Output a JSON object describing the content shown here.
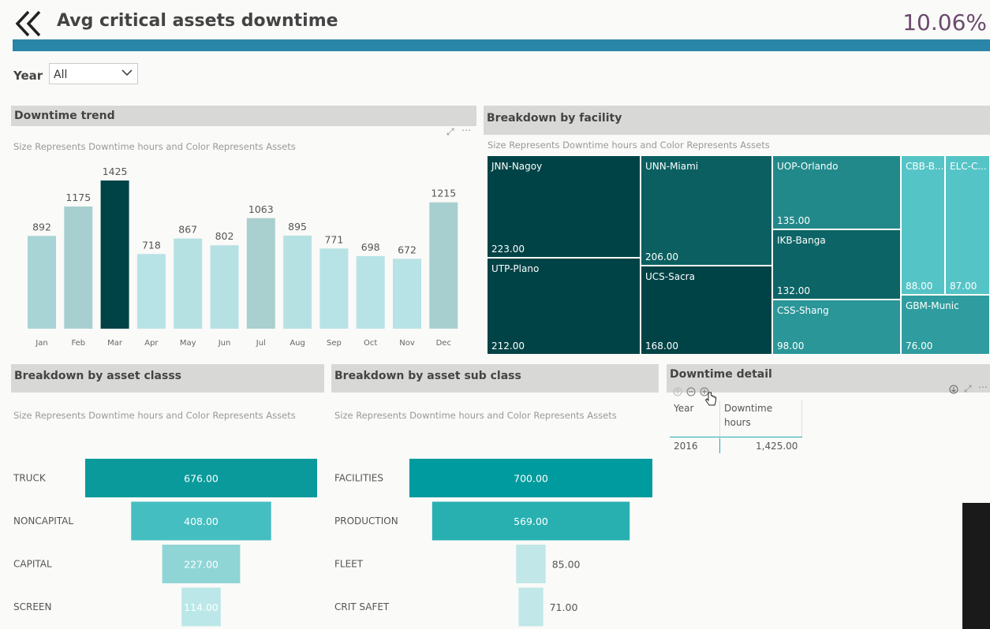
{
  "header": {
    "title": "Avg critical assets downtime",
    "kpi_value": "10.06%"
  },
  "filter": {
    "label": "Year",
    "value": "All"
  },
  "trend": {
    "header": "Downtime trend",
    "subtitle": "Size Represents Downtime hours and Color Represents  Assets"
  },
  "facility": {
    "header": "Breakdown by facility",
    "subtitle": "Size Represents Downtime hours and Color Represents  Assets"
  },
  "asset_class": {
    "header": "Breakdown by asset classs",
    "subtitle": "Size Represents Downtime hours and Color Represents  Assets"
  },
  "asset_sub_class": {
    "header": "Breakdown by asset sub class",
    "subtitle": "Size Represents Downtime hours and Color Represents  Assets"
  },
  "detail": {
    "header": "Downtime detail",
    "columns": [
      "Year",
      "Downtime",
      "hours"
    ],
    "rows": [
      {
        "year": "2016",
        "hours": "1,425.00"
      }
    ]
  },
  "colors": {
    "accent": "#2a86a8",
    "kpi": "#6b4a6e",
    "dark_teal": "#004346",
    "mid_teal": "#0a9a9c",
    "light_teal": "#b6e0e0"
  },
  "chart_data": [
    {
      "type": "bar",
      "categories": [
        "Jan",
        "Feb",
        "Mar",
        "Apr",
        "May",
        "Jun",
        "Jul",
        "Aug",
        "Sep",
        "Oct",
        "Nov",
        "Dec"
      ],
      "values": [
        892,
        1175,
        1425,
        718,
        867,
        802,
        1063,
        895,
        771,
        698,
        672,
        1215
      ],
      "data_labels": [
        "892",
        "1175",
        "1425",
        "718",
        "867",
        "802",
        "1063",
        "895",
        "771",
        "698",
        "672",
        "1215"
      ],
      "colors": [
        "#a8d4d6",
        "#a8cfcf",
        "#004346",
        "#b8e3e6",
        "#b6e1e3",
        "#b6e1e3",
        "#a9cfcf",
        "#b6e1e3",
        "#b8e3e6",
        "#b8e3e6",
        "#b8e3e6",
        "#a8cfcf"
      ]
    },
    {
      "type": "heatmap",
      "subtype": "treemap",
      "cells": [
        {
          "name": "JNN-Nagoy",
          "value": 223.0,
          "label": "223.00",
          "color": "#004346"
        },
        {
          "name": "UTP-Plano",
          "value": 212.0,
          "label": "212.00",
          "color": "#004346"
        },
        {
          "name": "UNN-Miami",
          "value": 206.0,
          "label": "206.00",
          "color": "#0b5f61"
        },
        {
          "name": "UCS-Sacra",
          "value": 168.0,
          "label": "168.00",
          "color": "#004346"
        },
        {
          "name": "UOP-Orlando",
          "value": 135.0,
          "label": "135.00",
          "color": "#22898b"
        },
        {
          "name": "IKB-Banga",
          "value": 132.0,
          "label": "132.00",
          "color": "#0d6466"
        },
        {
          "name": "CSS-Shang",
          "value": 98.0,
          "label": "98.00",
          "color": "#2a9698"
        },
        {
          "name": "CBB-B...",
          "value": 88.0,
          "label": "88.00",
          "color": "#55c4c6"
        },
        {
          "name": "ELC-C...",
          "value": 87.0,
          "label": "87.00",
          "color": "#55c4c6"
        },
        {
          "name": "GBM-Munic",
          "value": 76.0,
          "label": "76.00",
          "color": "#2f9d9f"
        }
      ]
    },
    {
      "type": "bar",
      "subtype": "funnel",
      "categories": [
        "TRUCK",
        "NONCAPITAL",
        "CAPITAL",
        "SCREEN"
      ],
      "values": [
        676.0,
        408.0,
        227.0,
        114.0
      ],
      "data_labels": [
        "676.00",
        "408.00",
        "227.00",
        "114.00"
      ],
      "colors": [
        "#0a9a9c",
        "#45bec1",
        "#8fd5d6",
        "#bce7e8"
      ]
    },
    {
      "type": "bar",
      "subtype": "funnel",
      "categories": [
        "FACILITIES",
        "PRODUCTION",
        "FLEET",
        "CRIT SAFET"
      ],
      "values": [
        700.0,
        569.0,
        85.0,
        71.0
      ],
      "data_labels": [
        "700.00",
        "569.00",
        "85.00",
        "71.00"
      ],
      "colors": [
        "#009b9e",
        "#28b0b1",
        "#c1e7e8",
        "#c1e7e8"
      ]
    }
  ]
}
